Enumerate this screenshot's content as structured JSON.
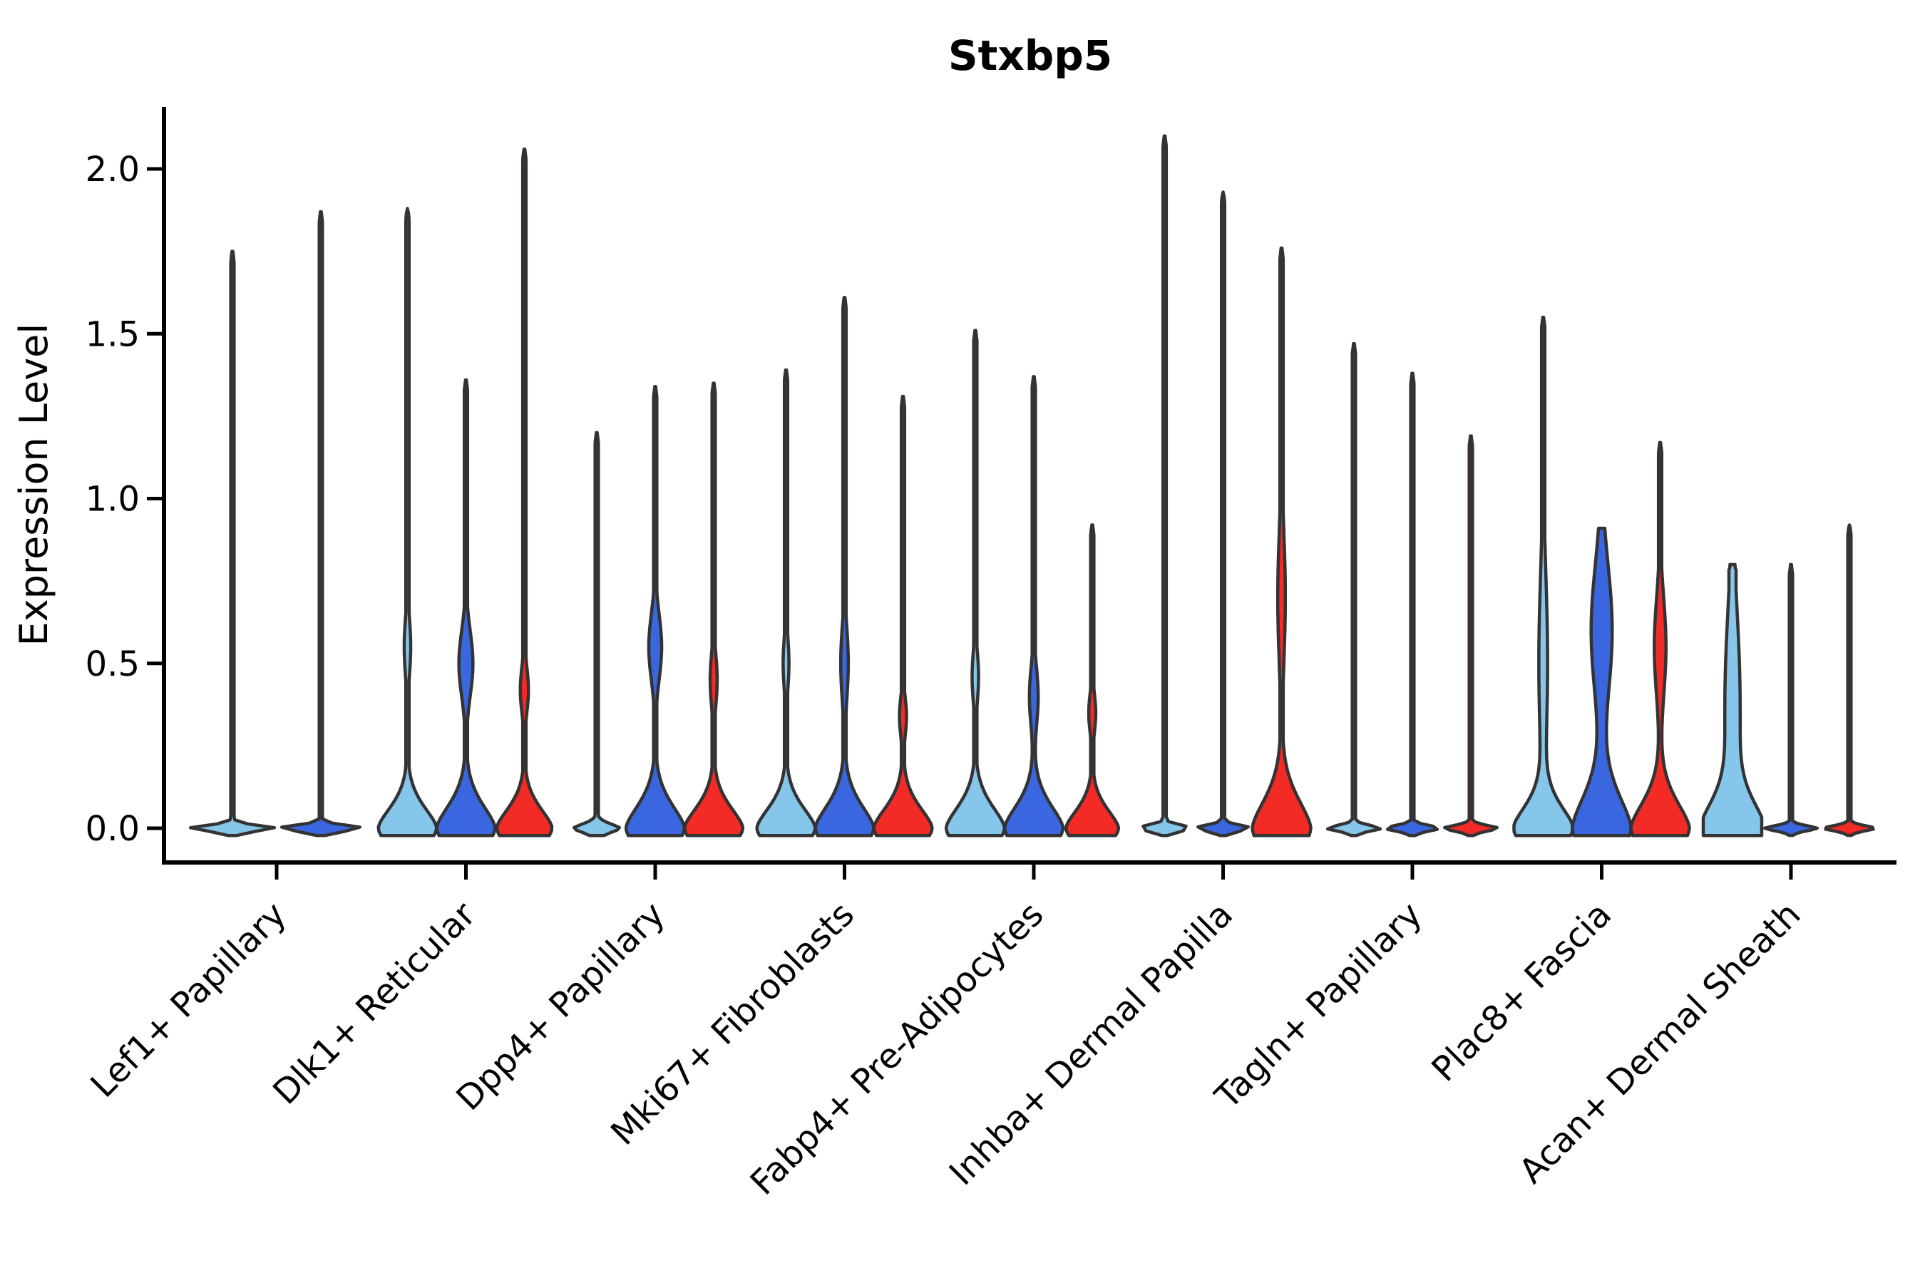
{
  "title": "Stxbp5",
  "axes": {
    "ylabel": "Expression Level",
    "xlabel": ""
  },
  "palette": {
    "light_blue": "#85C6EA",
    "dark_blue": "#3A67E0",
    "red": "#F22B26",
    "outline": "#333333",
    "axis": "#000000",
    "background": "#FFFFFF"
  },
  "chart_data": {
    "type": "violin",
    "title": "Stxbp5",
    "xlabel": "",
    "ylabel": "Expression Level",
    "ylim": [
      -0.1,
      2.19
    ],
    "yticks": [
      0.0,
      0.5,
      1.0,
      1.5,
      2.0
    ],
    "ytick_labels": [
      "0.0",
      "0.5",
      "1.0",
      "1.5",
      "2.0"
    ],
    "grid": false,
    "legend": false,
    "series_order": [
      "light_blue",
      "dark_blue",
      "red"
    ],
    "categories": [
      "Lef1+ Papillary",
      "Dlk1+ Reticular",
      "Dpp4+ Papillary",
      "Mki67+ Fibroblasts",
      "Fabp4+ Pre-Adipocytes",
      "Inhba+ Dermal Papilla",
      "Tagln+ Papillary",
      "Plac8+ Fascia",
      "Acan+ Dermal Sheath"
    ],
    "groups": [
      {
        "category": "Lef1+ Papillary",
        "violins": [
          {
            "series": "light_blue",
            "max": 1.75,
            "bulge": null,
            "base_h": 0.013,
            "base_w": 1.0
          },
          {
            "series": "dark_blue",
            "max": 1.87,
            "bulge": null,
            "base_h": 0.013,
            "base_w": 1.0
          }
        ]
      },
      {
        "category": "Dlk1+ Reticular",
        "violins": [
          {
            "series": "light_blue",
            "max": 1.88,
            "bulge": {
              "c": 0.55,
              "s": 0.09,
              "w": 0.11
            },
            "base_h": 0.095,
            "base_w": 1.0
          },
          {
            "series": "dark_blue",
            "max": 1.36,
            "bulge": {
              "c": 0.5,
              "s": 0.1,
              "w": 0.24
            },
            "base_h": 0.105,
            "base_w": 1.0
          },
          {
            "series": "red",
            "max": 2.06,
            "bulge": {
              "c": 0.42,
              "s": 0.07,
              "w": 0.14
            },
            "base_h": 0.09,
            "base_w": 0.95
          }
        ]
      },
      {
        "category": "Dpp4+ Papillary",
        "violins": [
          {
            "series": "light_blue",
            "max": 1.2,
            "bulge": null,
            "base_h": 0.02,
            "base_w": 0.8
          },
          {
            "series": "dark_blue",
            "max": 1.34,
            "bulge": {
              "c": 0.55,
              "s": 0.1,
              "w": 0.22
            },
            "base_h": 0.105,
            "base_w": 1.0
          },
          {
            "series": "red",
            "max": 1.35,
            "bulge": {
              "c": 0.45,
              "s": 0.08,
              "w": 0.12
            },
            "base_h": 0.095,
            "base_w": 1.0
          }
        ]
      },
      {
        "category": "Mki67+ Fibroblasts",
        "violins": [
          {
            "series": "light_blue",
            "max": 1.39,
            "bulge": {
              "c": 0.5,
              "s": 0.08,
              "w": 0.1
            },
            "base_h": 0.095,
            "base_w": 1.0
          },
          {
            "series": "dark_blue",
            "max": 1.61,
            "bulge": {
              "c": 0.5,
              "s": 0.11,
              "w": 0.13
            },
            "base_h": 0.105,
            "base_w": 1.0
          },
          {
            "series": "red",
            "max": 1.31,
            "bulge": {
              "c": 0.34,
              "s": 0.06,
              "w": 0.12
            },
            "base_h": 0.095,
            "base_w": 1.0
          }
        ]
      },
      {
        "category": "Fabp4+ Pre-Adipocytes",
        "violins": [
          {
            "series": "light_blue",
            "max": 1.51,
            "bulge": {
              "c": 0.46,
              "s": 0.08,
              "w": 0.11
            },
            "base_h": 0.1,
            "base_w": 1.0
          },
          {
            "series": "dark_blue",
            "max": 1.37,
            "bulge": {
              "c": 0.4,
              "s": 0.09,
              "w": 0.15
            },
            "base_h": 0.105,
            "base_w": 1.0
          },
          {
            "series": "red",
            "max": 0.92,
            "bulge": {
              "c": 0.35,
              "s": 0.06,
              "w": 0.12
            },
            "base_h": 0.085,
            "base_w": 0.9
          }
        ]
      },
      {
        "category": "Inhba+ Dermal Papilla",
        "violins": [
          {
            "series": "light_blue",
            "max": 2.1,
            "bulge": null,
            "base_h": 0.013,
            "base_w": 1.0
          },
          {
            "series": "dark_blue",
            "max": 1.93,
            "bulge": null,
            "base_h": 0.013,
            "base_w": 1.0
          },
          {
            "series": "red",
            "max": 1.76,
            "bulge": {
              "c": 0.7,
              "s": 0.2,
              "w": 0.13
            },
            "base_h": 0.13,
            "base_w": 1.0
          }
        ]
      },
      {
        "category": "Tagln+ Papillary",
        "violins": [
          {
            "series": "light_blue",
            "max": 1.47,
            "bulge": null,
            "base_h": 0.013,
            "base_w": 0.95
          },
          {
            "series": "dark_blue",
            "max": 1.38,
            "bulge": null,
            "base_h": 0.013,
            "base_w": 0.95
          },
          {
            "series": "red",
            "max": 1.19,
            "bulge": null,
            "base_h": 0.013,
            "base_w": 0.95
          }
        ]
      },
      {
        "category": "Plac8+ Fascia",
        "violins": [
          {
            "series": "light_blue",
            "max": 1.55,
            "bulge": {
              "c": 0.5,
              "s": 0.27,
              "w": 0.15
            },
            "base_h": 0.1,
            "base_w": 1.0
          },
          {
            "series": "dark_blue",
            "max": 0.91,
            "bulge": {
              "c": 0.6,
              "s": 0.2,
              "w": 0.36
            },
            "base_h": 0.15,
            "base_w": 1.0,
            "stem": 5,
            "blunt": true
          },
          {
            "series": "red",
            "max": 1.17,
            "bulge": {
              "c": 0.55,
              "s": 0.15,
              "w": 0.2
            },
            "base_h": 0.12,
            "base_w": 1.0
          }
        ]
      },
      {
        "category": "Acan+ Dermal Sheath",
        "violins": [
          {
            "series": "light_blue",
            "max": 0.8,
            "bulge": {
              "c": 0.38,
              "s": 0.28,
              "w": 0.26
            },
            "base_h": 0.12,
            "base_w": 1.0,
            "stem": 5,
            "blunt": true
          },
          {
            "series": "dark_blue",
            "max": 0.8,
            "bulge": null,
            "base_h": 0.012,
            "base_w": 0.9
          },
          {
            "series": "red",
            "max": 0.92,
            "bulge": null,
            "base_h": 0.012,
            "base_w": 0.9
          }
        ]
      }
    ]
  }
}
